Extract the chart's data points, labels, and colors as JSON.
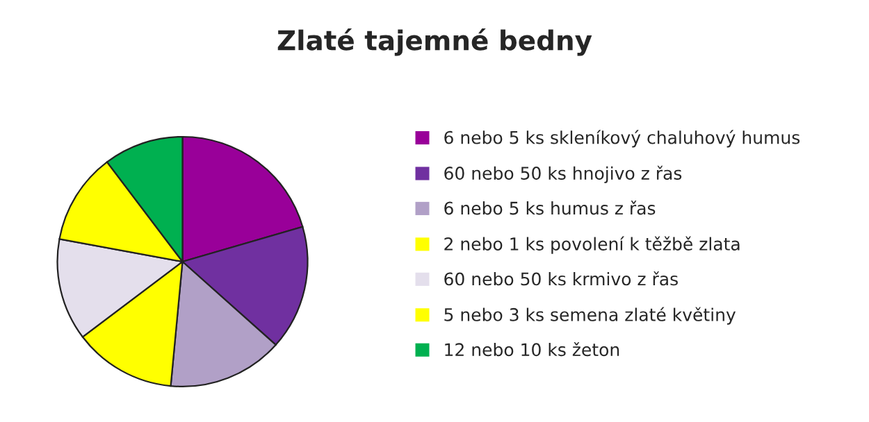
{
  "chart_data": {
    "type": "pie",
    "title": "Zlaté tajemné bedny",
    "categories": [
      "6 nebo 5 ks skleníkový chaluhový humus",
      "60 nebo 50 ks hnojivo z řas",
      "6 nebo 5 ks humus z řas",
      "2 nebo 1 ks povolení k těžbě zlata",
      "60 nebo 50 ks krmivo z řas",
      "5 nebo 3 ks semena zlaté květiny",
      "12 nebo 10 ks žeton"
    ],
    "values": [
      20.5,
      16.1,
      14.9,
      13.2,
      13.2,
      11.8,
      10.3
    ],
    "colors": [
      "#990099",
      "#7030a0",
      "#b1a0c7",
      "#ffff00",
      "#e4dfec",
      "#ffff00",
      "#00b050"
    ],
    "legend": "right"
  }
}
